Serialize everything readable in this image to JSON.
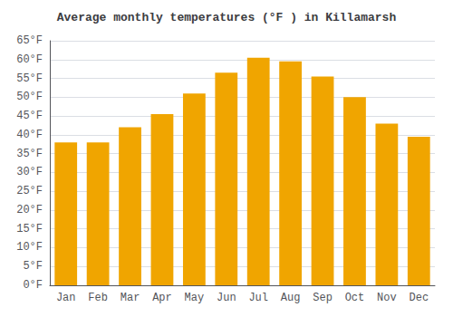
{
  "chart_data": {
    "type": "bar",
    "title": "Average monthly temperatures (°F ) in Killamarsh",
    "categories": [
      "Jan",
      "Feb",
      "Mar",
      "Apr",
      "May",
      "Jun",
      "Jul",
      "Aug",
      "Sep",
      "Oct",
      "Nov",
      "Dec"
    ],
    "values": [
      38,
      38,
      42,
      45.5,
      51,
      56.5,
      60.5,
      59.5,
      55.5,
      50,
      43,
      39.5
    ],
    "color": "#F0A500",
    "ylim": [
      0,
      65
    ],
    "yticks": [
      {
        "value": 0,
        "label": "0°F"
      },
      {
        "value": 5,
        "label": "5°F"
      },
      {
        "value": 10,
        "label": "10°F"
      },
      {
        "value": 15,
        "label": "15°F"
      },
      {
        "value": 20,
        "label": "20°F"
      },
      {
        "value": 25,
        "label": "25°F"
      },
      {
        "value": 30,
        "label": "30°F"
      },
      {
        "value": 35,
        "label": "35°F"
      },
      {
        "value": 40,
        "label": "40°F"
      },
      {
        "value": 45,
        "label": "45°F"
      },
      {
        "value": 50,
        "label": "50°F"
      },
      {
        "value": 55,
        "label": "55°F"
      },
      {
        "value": 60,
        "label": "60°F"
      },
      {
        "value": 65,
        "label": "65°F"
      }
    ],
    "grid": true
  }
}
